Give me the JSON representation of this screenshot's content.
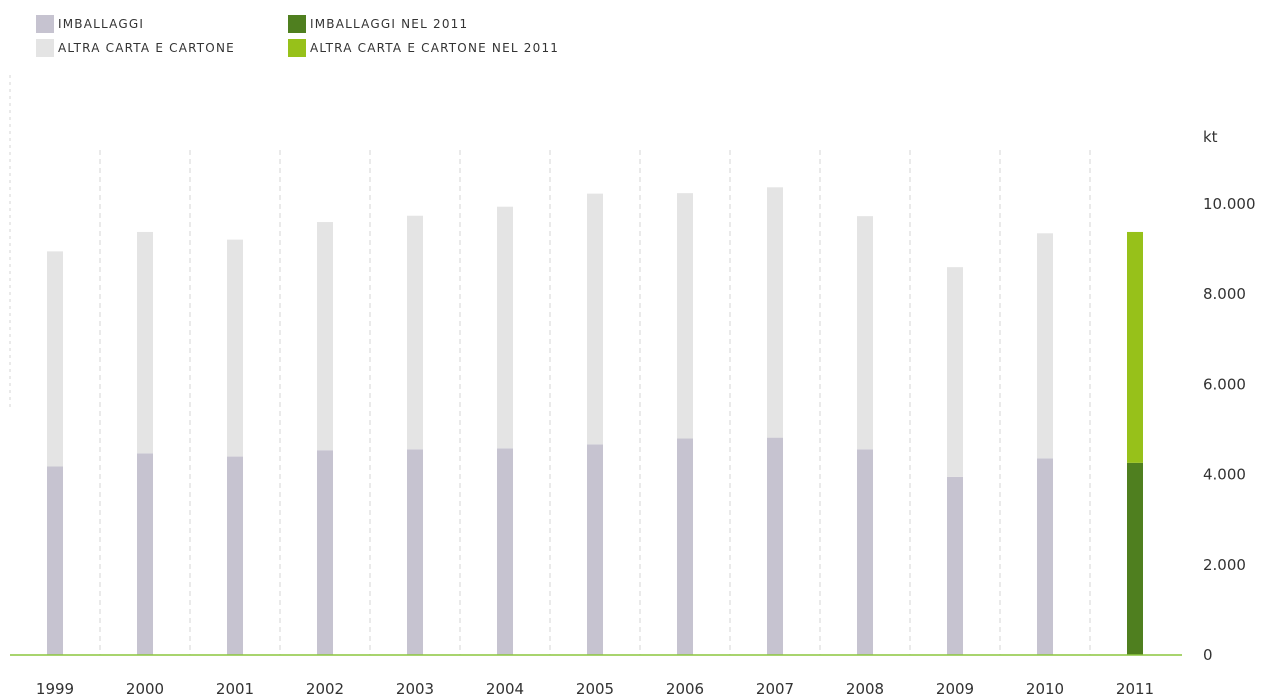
{
  "legend": {
    "items": [
      {
        "label": "IMBALLAGGI",
        "color": "#c6c3d0"
      },
      {
        "label": "ALTRA CARTA E CARTONE",
        "color": "#e4e4e4"
      },
      {
        "label": "IMBALLAGGI NEL 2011",
        "color": "#4f7f1f"
      },
      {
        "label": "ALTRA CARTA E CARTONE NEL 2011",
        "color": "#97c11a"
      }
    ]
  },
  "chart_data": {
    "type": "bar",
    "stacked": true,
    "unit": "kt",
    "categories": [
      "1999",
      "2000",
      "2001",
      "2002",
      "2003",
      "2004",
      "2005",
      "2006",
      "2007",
      "2008",
      "2009",
      "2010",
      "2011"
    ],
    "series": [
      {
        "name": "IMBALLAGGI",
        "values": [
          4180,
          4470,
          4400,
          4540,
          4560,
          4580,
          4670,
          4800,
          4820,
          4560,
          3950,
          4360,
          4260
        ]
      },
      {
        "name": "ALTRA CARTA E CARTONE",
        "values": [
          4770,
          4910,
          4810,
          5060,
          5180,
          5360,
          5560,
          5440,
          5550,
          5170,
          4650,
          4990,
          5120
        ]
      }
    ],
    "highlight_category": "2011",
    "colors": {
      "imballaggi": "#c6c3d0",
      "altra": "#e4e4e4",
      "imballaggi_2011": "#4f7f1f",
      "altra_2011": "#97c11a",
      "baseline": "#8cc63f",
      "grid": "#d6d6d6"
    },
    "ylim": [
      0,
      10000
    ],
    "yticks": [
      {
        "value": 0,
        "label": "0"
      },
      {
        "value": 2000,
        "label": "2.000"
      },
      {
        "value": 4000,
        "label": "4.000"
      },
      {
        "value": 6000,
        "label": "6.000"
      },
      {
        "value": 8000,
        "label": "8.000"
      },
      {
        "value": 10000,
        "label": "10.000"
      }
    ],
    "grid": "vertical dashed",
    "legend_position": "top-left"
  }
}
